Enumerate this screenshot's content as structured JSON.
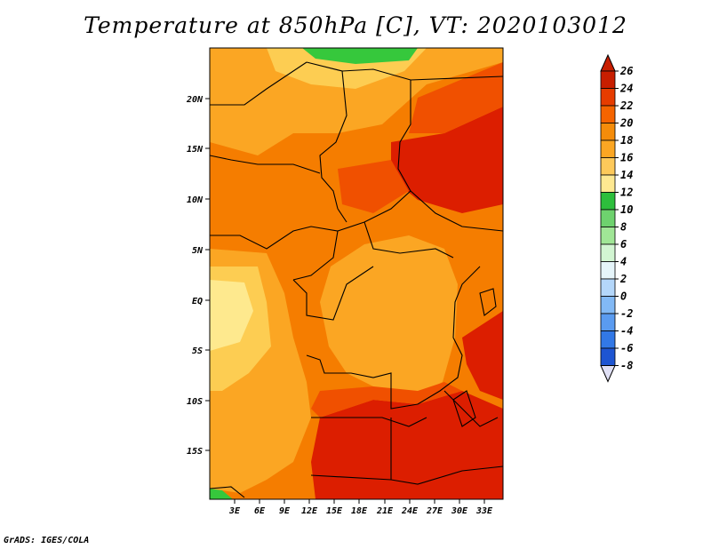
{
  "title": "Temperature at 850hPa [C], VT: 2020103012",
  "credit": "GrADS: IGES/COLA",
  "map": {
    "lon_ticks": [
      "3E",
      "6E",
      "9E",
      "12E",
      "15E",
      "18E",
      "21E",
      "24E",
      "27E",
      "30E",
      "33E"
    ],
    "lat_ticks": [
      "20N",
      "15N",
      "10N",
      "5N",
      "EQ",
      "5S",
      "10S",
      "15S"
    ]
  },
  "colorbar": {
    "levels": [
      "26",
      "24",
      "22",
      "20",
      "18",
      "16",
      "14",
      "12",
      "10",
      "8",
      "6",
      "4",
      "2",
      "0",
      "-2",
      "-4",
      "-6",
      "-8"
    ],
    "colors": [
      "#a50000",
      "#dc1e00",
      "#f05000",
      "#f57d00",
      "#fba623",
      "#fdcd52",
      "#fee98e",
      "#fefec0",
      "#36c83c",
      "#64de60",
      "#96f08c",
      "#c8fac0",
      "#e6fae6",
      "#c6e6fa",
      "#96d2fa",
      "#5aa0f0",
      "#2d73e6",
      "#1e4bd2",
      "#0f23aa",
      "#000a78",
      "#d2d2f0"
    ],
    "top_color": "#c81e00",
    "bottom_color": "#e0e0f5"
  }
}
